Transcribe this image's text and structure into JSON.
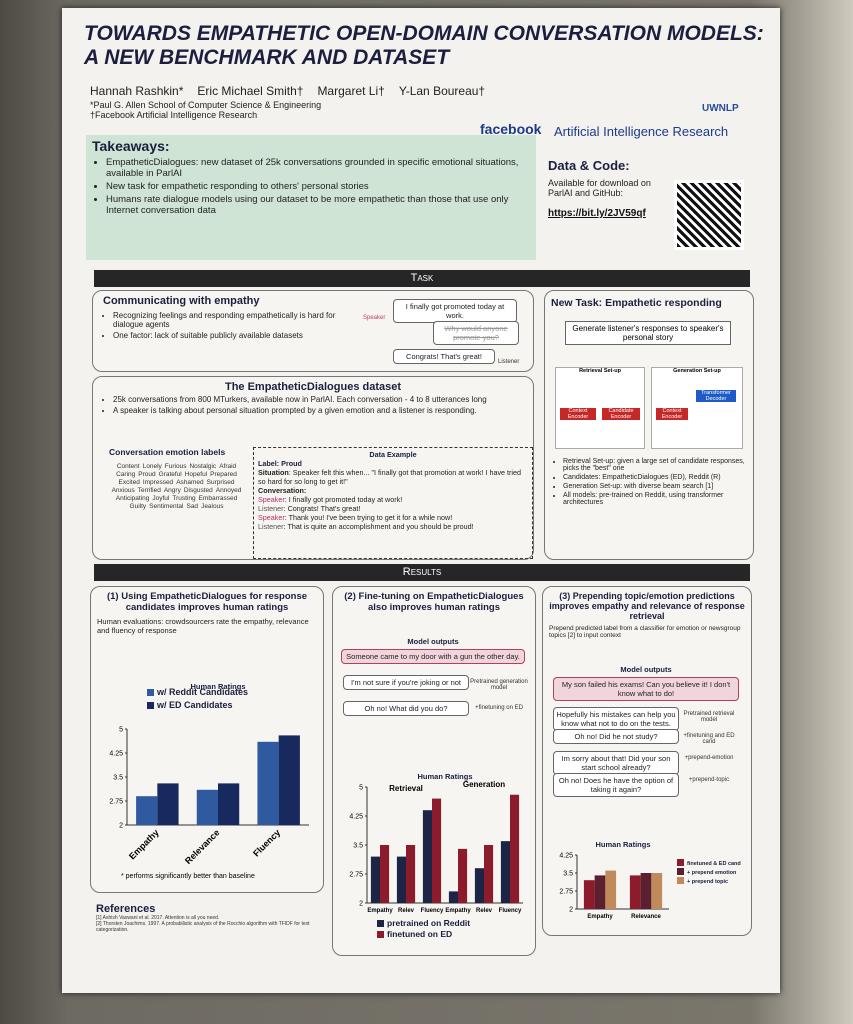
{
  "header": {
    "title": "TOWARDS EMPATHETIC OPEN-DOMAIN CONVERSATION MODELS: A NEW BENCHMARK AND DATASET",
    "authors": [
      "Hannah Rashkin*",
      "Eric Michael Smith†",
      "Margaret Li†",
      "Y-Lan Boureau†"
    ],
    "affiliations": [
      "*Paul G. Allen School of Computer Science & Engineering",
      "†Facebook Artificial Intelligence Research"
    ],
    "org": "facebook",
    "org_unit": "Artificial Intelligence Research",
    "logo": "UWNLP"
  },
  "takeaways": {
    "heading": "Takeaways:",
    "items": [
      "EmpatheticDialogues: new dataset of 25k conversations grounded in specific emotional situations, available in ParlAI",
      "New task for empathetic responding to others' personal stories",
      "Humans rate dialogue models using our dataset to be more empathetic than those that use only Internet conversation data"
    ]
  },
  "data_code": {
    "heading": "Data & Code:",
    "text": "Available for download on ParlAI and GitHub:",
    "link": "https://bit.ly/2JV59qf"
  },
  "task": {
    "banner": "Task",
    "communicating": {
      "heading": "Communicating with empathy",
      "items": [
        "Recognizing feelings and responding empathetically is hard for dialogue agents",
        "One factor: lack of suitable publicly available datasets"
      ],
      "dialogue": [
        "I finally got promoted today at work.",
        "Why would anyone promote you?",
        "Congrats! That's great!"
      ],
      "speaker": "Speaker",
      "listener": "Listener"
    },
    "new_task": {
      "heading": "New Task: Empathetic responding",
      "box": "Generate listener's responses to speaker's personal story",
      "setups": [
        "Retrieval Set-up",
        "Generation Set-up"
      ],
      "blocks": [
        "Context Encoder",
        "Candidate Encoder",
        "Context Encoder",
        "Transformer Decoder"
      ],
      "items": [
        "Retrieval Set-up: given a large set of candidate responses, picks the \"best\" one",
        "Candidates: EmpatheticDialogues (ED), Reddit (R)",
        "Generation Set-up: with diverse beam search [1]",
        "All models: pre-trained on Reddit, using transformer architectures"
      ]
    },
    "dataset": {
      "heading": "The EmpatheticDialogues dataset",
      "items": [
        "25k conversations from 800 MTurkers, available now in ParlAI. Each conversation - 4 to 8 utterances long",
        "A speaker is talking about personal situation prompted by a given emotion and a listener is responding."
      ],
      "emotion_heading": "Conversation emotion labels",
      "emotion_words": [
        "Content",
        "Lonely",
        "Furious",
        "Nostalgic",
        "Afraid",
        "Caring",
        "Proud",
        "Grateful",
        "Hopeful",
        "Prepared",
        "Excited",
        "Impressed",
        "Ashamed",
        "Surprised",
        "Anxious",
        "Terrified",
        "Angry",
        "Disgusted",
        "Annoyed",
        "Anticipating",
        "Joyful",
        "Trusting",
        "Embarrassed",
        "Guilty",
        "Sentimental",
        "Sad",
        "Jealous"
      ],
      "example_heading": "Data Example",
      "label": "Label: Proud",
      "situation_label": "Situation",
      "situation": ": Speaker felt this when... \"I finally got that promotion at work! I have tried so hard for so long to get it!\"",
      "conversation": "Conversation:",
      "turns": [
        {
          "role": "Speaker",
          "text": ": I finally got promoted today at work!"
        },
        {
          "role": "Listener",
          "text": ": Congrats! That's great!"
        },
        {
          "role": "Speaker",
          "text": ": Thank you! I've been trying to get it for a while now!"
        },
        {
          "role": "Listener",
          "text": ": That is quite an accomplishment and you should be proud!"
        }
      ]
    }
  },
  "results": {
    "banner": "Results",
    "panels": [
      {
        "heading": "(1) Using EmpatheticDialogues for response candidates improves human ratings",
        "desc": "Human evaluations: crowdsourcers rate the empathy, relevance and fluency of response",
        "note": "* performs significantly better than baseline"
      },
      {
        "heading": "(2) Fine-tuning on EmpatheticDialogues also improves human ratings",
        "outputs_heading": "Model outputs",
        "prompt": "Someone came to my door with a gun the other day.",
        "responses": [
          {
            "text": "I'm not sure if you're joking or not",
            "tag": "Pretrained generation model"
          },
          {
            "text": "Oh no! What did you do?",
            "tag": "+finetuning on ED"
          }
        ]
      },
      {
        "heading": "(3) Prepending topic/emotion predictions improves empathy and relevance of response retrieval",
        "desc": "Prepend predicted label from a classifier for emotion or newsgroup topics [2] to input context",
        "outputs_heading": "Model outputs",
        "prompt": "My son failed his exams! Can you believe it! I don't know what to do!",
        "responses": [
          {
            "text": "Hopefully his mistakes can help you know what not to do on the tests.",
            "tag": "Pretrained retrieval model"
          },
          {
            "text": "Oh no! Did he not study?",
            "tag": "+finetuning and ED cand"
          },
          {
            "text": "Im sorry about that! Did your son start school already?",
            "tag": "+prepend-emotion"
          },
          {
            "text": "Oh no! Does he have the option of taking it again?",
            "tag": "+prepend-topic"
          }
        ]
      }
    ]
  },
  "references": {
    "heading": "References",
    "items": [
      "[1] Ashish Vaswani et al. 2017. Attention is all you need.",
      "[2] Thorsten Joachims. 1997. A probabilistic analysis of the Rocchio algorithm with TFIDF for text categorization."
    ]
  },
  "chart_data": [
    {
      "type": "bar",
      "title": "Human Ratings",
      "categories": [
        "Empathy",
        "Relevance",
        "Fluency"
      ],
      "series": [
        {
          "name": "w/ Reddit Candidates",
          "color": "#2f5aa0",
          "values": [
            2.9,
            3.1,
            4.6
          ]
        },
        {
          "name": "w/ ED Candidates",
          "color": "#17295e",
          "values": [
            3.3,
            3.3,
            4.8
          ]
        }
      ],
      "ylim": [
        2,
        5
      ],
      "yticks": [
        2,
        2.75,
        3.5,
        4.25,
        5
      ],
      "legend": "top",
      "xlabel_rotation": -45
    },
    {
      "type": "bar",
      "title": "Human Ratings",
      "groups": [
        "Retrieval",
        "Generation"
      ],
      "categories": [
        "Empathy",
        "Relev",
        "Fluency",
        "Empathy",
        "Relev",
        "Fluency"
      ],
      "series": [
        {
          "name": "pretrained on Reddit",
          "color": "#1d2547",
          "values": [
            3.2,
            3.2,
            4.4,
            2.3,
            2.9,
            3.6
          ]
        },
        {
          "name": "finetuned on ED",
          "color": "#8c1c2c",
          "values": [
            3.5,
            3.5,
            4.7,
            3.4,
            3.5,
            4.8
          ]
        }
      ],
      "ylim": [
        2,
        5
      ],
      "yticks": [
        2,
        2.75,
        3.5,
        4.25,
        5
      ],
      "legend": "bottom"
    },
    {
      "type": "bar",
      "title": "Human Ratings",
      "categories": [
        "Empathy",
        "Relevance"
      ],
      "series": [
        {
          "name": "finetuned & ED cand",
          "color": "#8c1c2c",
          "values": [
            3.2,
            3.4
          ]
        },
        {
          "name": "+ prepend emotion",
          "color": "#5a2030",
          "values": [
            3.4,
            3.5
          ]
        },
        {
          "name": "+ prepend topic",
          "color": "#c08a5a",
          "values": [
            3.6,
            3.5
          ]
        }
      ],
      "ylim": [
        2,
        4.25
      ],
      "yticks": [
        2,
        2.75,
        3.5,
        4.25
      ],
      "legend": "right"
    }
  ]
}
